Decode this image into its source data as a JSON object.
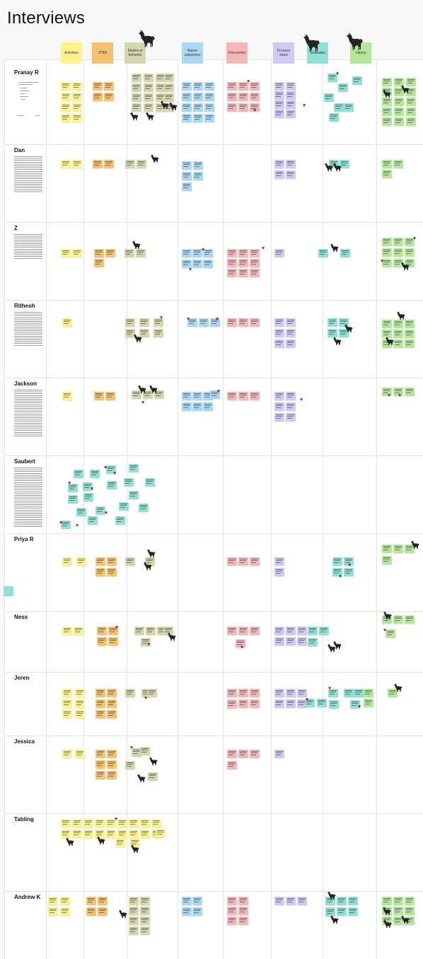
{
  "board": {
    "title": "Interviews",
    "columns": [
      {
        "key": "activities",
        "label": "Activities",
        "color": "#fcf38d"
      },
      {
        "key": "jtbd",
        "label": "JTBD",
        "color": "#f6c26f"
      },
      {
        "key": "modes",
        "label": "Modes of behavior",
        "color": "#d6d6ae"
      },
      {
        "key": "native",
        "label": "Native categories",
        "color": "#a9d7f4"
      },
      {
        "key": "pain",
        "label": "Pain points",
        "color": "#f3b7b7"
      },
      {
        "key": "process",
        "label": "Process steps",
        "color": "#d2c8f6"
      },
      {
        "key": "strategies",
        "label": "Strategies",
        "color": "#8fe0d5"
      },
      {
        "key": "values",
        "label": "Values",
        "color": "#b3e89a"
      }
    ],
    "rows": [
      {
        "label": "Pranay R"
      },
      {
        "label": "Dan"
      },
      {
        "label": "Z"
      },
      {
        "label": "Rithesh"
      },
      {
        "label": "Jackson"
      },
      {
        "label": "Saubert"
      },
      {
        "label": "Priya R"
      },
      {
        "label": "Ness"
      },
      {
        "label": "Jeren"
      },
      {
        "label": "Jessica"
      },
      {
        "label": "Tabling"
      },
      {
        "label": "Andrew K"
      }
    ],
    "icons": {
      "llama": "llama-icon",
      "heart": "heart-icon"
    },
    "colors": {
      "heart": "#b3131d",
      "grid": "#e3e3e3"
    }
  }
}
